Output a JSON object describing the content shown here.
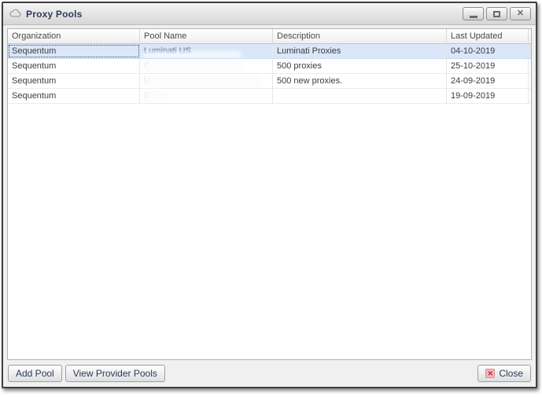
{
  "window": {
    "title": "Proxy Pools",
    "icon": "cloud-icon"
  },
  "window_controls": {
    "minimize_icon": "minimize-icon",
    "maximize_icon": "maximize-icon",
    "close_icon": "close-x-icon"
  },
  "table": {
    "columns": [
      "Organization",
      "Pool Name",
      "Description",
      "Last Updated"
    ],
    "rows": [
      {
        "organization": "Sequentum",
        "pool_name_visible": "Luminati US",
        "pool_name_redacted": true,
        "redaction": "partial",
        "smudge_width": 126,
        "description": "Luminati Proxies",
        "last_updated": "04-10-2019",
        "selected": true
      },
      {
        "organization": "Sequentum",
        "pool_name_visible": "C",
        "pool_name_redacted": true,
        "redaction": "full",
        "smudge_width": 128,
        "description": "500 proxies",
        "last_updated": "25-10-2019",
        "selected": false
      },
      {
        "organization": "Sequentum",
        "pool_name_visible": "U",
        "pool_name_redacted": true,
        "redaction": "full",
        "smudge_width": 152,
        "description": "500 new proxies.",
        "last_updated": "24-09-2019",
        "selected": false
      },
      {
        "organization": "Sequentum",
        "pool_name_visible": "X",
        "pool_name_redacted": true,
        "redaction": "full",
        "smudge_width": 34,
        "description": "",
        "last_updated": "19-09-2019",
        "selected": false
      }
    ]
  },
  "footer": {
    "add_pool": "Add Pool",
    "view_provider_pools": "View Provider Pools",
    "close": "Close",
    "close_icon": "red-x-icon"
  },
  "colors": {
    "selected_row": "#d9e7f8",
    "titlebar_text": "#2e3b55",
    "button_text": "#2a3a5a",
    "close_icon_red": "#c22b3a",
    "dialog_border": "#3f3f3f"
  }
}
